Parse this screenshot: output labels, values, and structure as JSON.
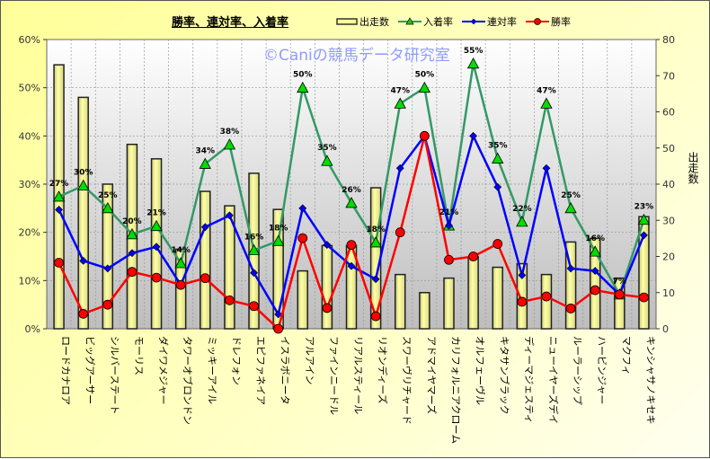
{
  "chart_data": {
    "type": "bar+line",
    "title": "勝率、連対率、入着率",
    "watermark": "©Caniの競馬データ研究室",
    "categories": [
      "ロードカナロア",
      "ビッグアーサー",
      "シルバーステート",
      "モーリス",
      "ダイワメジャー",
      "タワーオブロンドン",
      "ミッキーアイル",
      "ドレフォン",
      "エピファネイア",
      "イスラボニータ",
      "アルアイン",
      "ファインニードル",
      "リアルスティール",
      "リオンディーズ",
      "スワーヴリチャード",
      "アドマイヤマーズ",
      "カリフォルニアクローム",
      "オルフェーヴル",
      "キタサンブラック",
      "ディーマジェスティ",
      "ニューイヤーズデイ",
      "ルーラーシップ",
      "ハービンジャー",
      "マクフィ",
      "キンシャサノキセキ"
    ],
    "series": [
      {
        "name": "出走数",
        "type": "bar",
        "axis": "right",
        "color": "#ffff99",
        "values": [
          73,
          64,
          40,
          51,
          47,
          22,
          38,
          34,
          43,
          33,
          16,
          23,
          23,
          39,
          15,
          10,
          14,
          20,
          17,
          18,
          15,
          24,
          25,
          14,
          31
        ]
      },
      {
        "name": "入着率",
        "type": "line",
        "axis": "left",
        "color": "#339966",
        "marker": "triangle",
        "values": [
          27.4,
          29.7,
          25.0,
          19.6,
          21.3,
          13.6,
          34.2,
          38.2,
          16.3,
          18.2,
          50.0,
          34.8,
          26.1,
          17.9,
          46.7,
          50.0,
          21.4,
          55.0,
          35.3,
          22.2,
          46.7,
          25.0,
          16.0,
          7.1,
          22.6
        ],
        "labels": [
          "27%",
          "30%",
          "25%",
          "20%",
          "21%",
          "14%",
          "34%",
          "38%",
          "16%",
          "18%",
          "50%",
          "35%",
          "26%",
          "18%",
          "47%",
          "50%",
          "21%",
          "55%",
          "35%",
          "22%",
          "47%",
          "25%",
          "16%",
          "7%",
          "23%"
        ]
      },
      {
        "name": "連対率",
        "type": "line",
        "axis": "left",
        "color": "#0000ff",
        "marker": "diamond",
        "values": [
          24.7,
          14.1,
          12.5,
          15.7,
          17.0,
          9.1,
          21.1,
          23.5,
          11.6,
          3.0,
          25.0,
          17.4,
          13.0,
          10.3,
          33.3,
          40.0,
          21.4,
          40.0,
          29.4,
          11.1,
          33.3,
          12.5,
          12.0,
          7.1,
          19.4
        ]
      },
      {
        "name": "勝率",
        "type": "line",
        "axis": "left",
        "color": "#ff0000",
        "marker": "circle",
        "values": [
          13.7,
          3.1,
          5.0,
          11.8,
          10.6,
          9.1,
          10.5,
          5.9,
          4.7,
          0,
          18.8,
          4.3,
          17.4,
          2.6,
          20.0,
          40.0,
          14.3,
          15.0,
          17.6,
          5.6,
          6.7,
          4.2,
          8.0,
          7.1,
          6.5
        ]
      }
    ],
    "y_left": {
      "min": 0,
      "max": 60,
      "ticks": [
        "0%",
        "10%",
        "20%",
        "30%",
        "40%",
        "50%",
        "60%"
      ]
    },
    "y_right": {
      "min": 0,
      "max": 80,
      "title": "出走数",
      "ticks": [
        "0",
        "10",
        "20",
        "30",
        "40",
        "50",
        "60",
        "70",
        "80"
      ]
    },
    "grid": true,
    "legend": "top-right"
  }
}
